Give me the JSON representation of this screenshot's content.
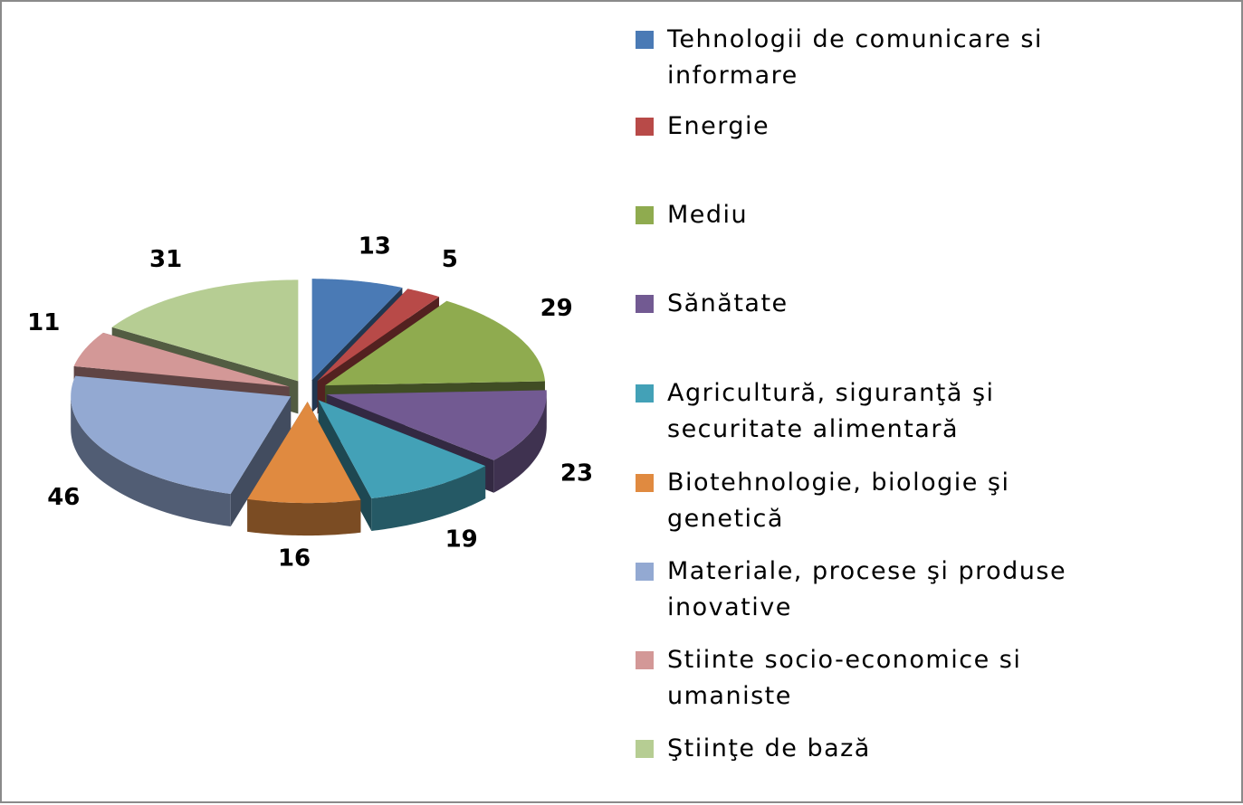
{
  "chart_data": {
    "type": "pie",
    "view": "3d-exploded",
    "categories": [
      "Tehnologii de comunicare si informare",
      "Energie",
      "Mediu",
      "Sănătate",
      "Agricultură, siguranţă şi securitate alimentară",
      "Biotehnologie, biologie şi genetică",
      "Materiale, procese şi produse inovative",
      "Stiinte socio-economice si umaniste",
      "Ştiinţe de bază"
    ],
    "values": [
      13,
      5,
      29,
      23,
      19,
      16,
      46,
      11,
      31
    ],
    "colors": [
      "#4a7ab5",
      "#b84a48",
      "#8fab4f",
      "#725a92",
      "#43a1b7",
      "#e08a40",
      "#93a9d2",
      "#d39897",
      "#b6cd93"
    ],
    "legend": "right"
  }
}
